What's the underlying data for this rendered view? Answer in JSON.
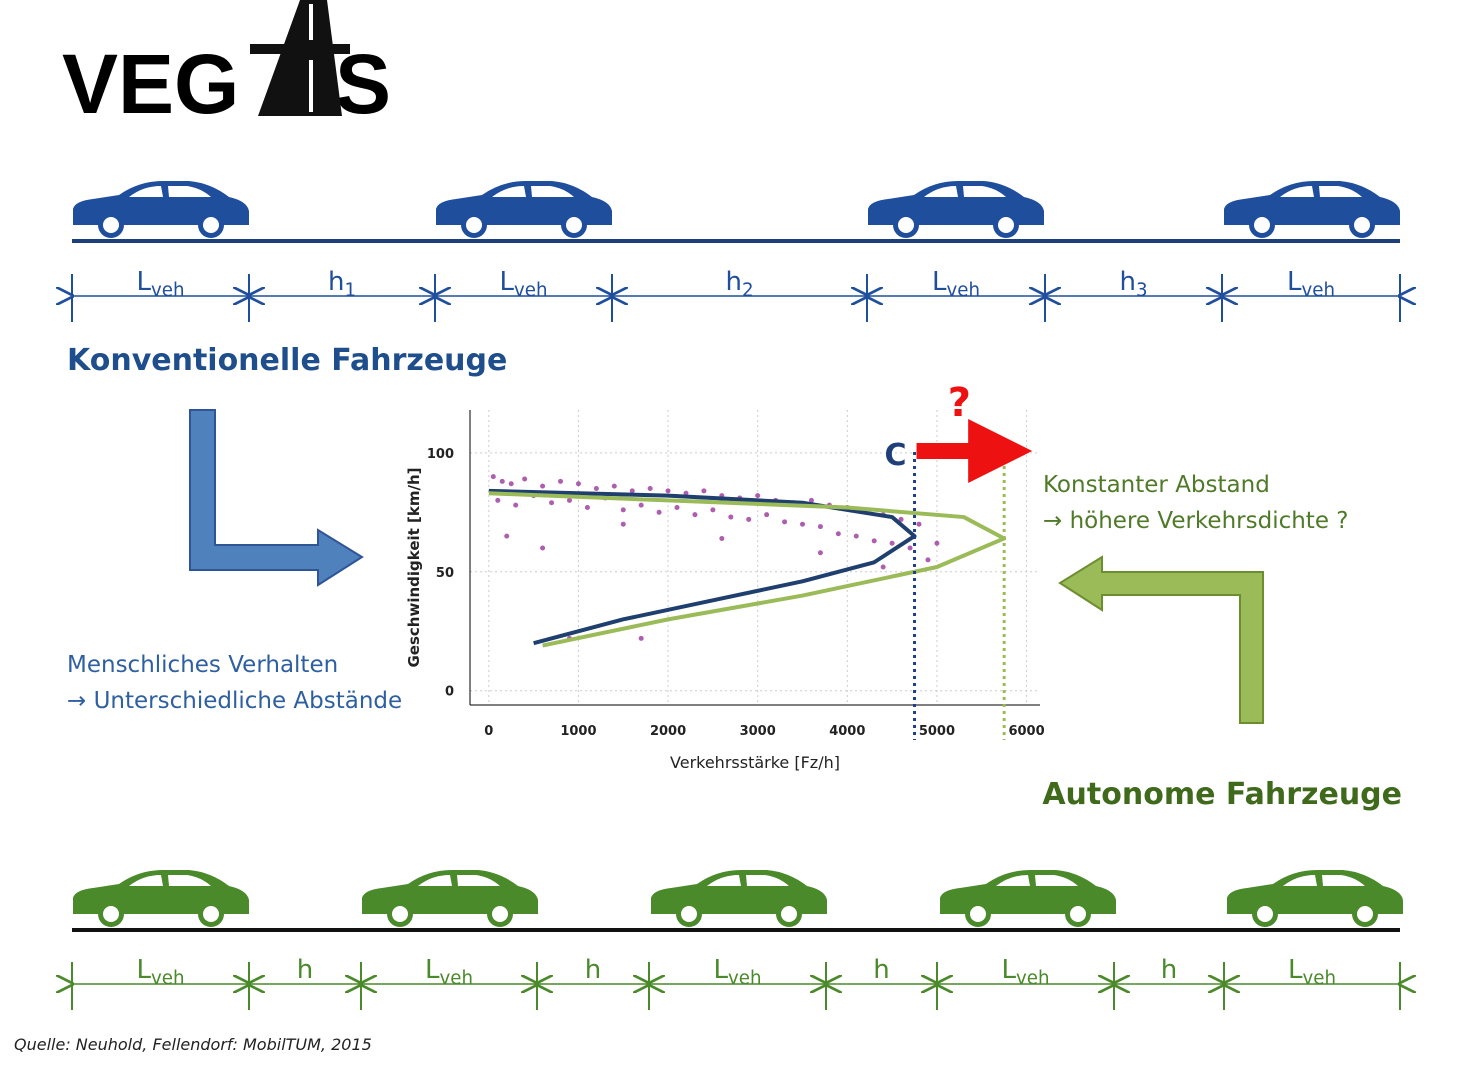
{
  "logo": {
    "left": "VEG",
    "right": "S"
  },
  "top_row": {
    "labels": [
      {
        "main": "L",
        "sub": "veh"
      },
      {
        "main": "h",
        "sub": "1"
      },
      {
        "main": "L",
        "sub": "veh"
      },
      {
        "main": "h",
        "sub": "2"
      },
      {
        "main": "L",
        "sub": "veh"
      },
      {
        "main": "h",
        "sub": "3"
      },
      {
        "main": "L",
        "sub": "veh"
      }
    ]
  },
  "heading_top": "Konventionelle Fahrzeuge",
  "heading_bottom": "Autonome Fahrzeuge",
  "note_left": [
    "Menschliches Verhalten",
    "→ Unterschiedliche Abstände"
  ],
  "note_right": [
    "Konstanter Abstand",
    "→ höhere Verkehrsdichte ?"
  ],
  "bottom_row": {
    "labels": [
      {
        "main": "L",
        "sub": "veh"
      },
      {
        "main": "h"
      },
      {
        "main": "L",
        "sub": "veh"
      },
      {
        "main": "h"
      },
      {
        "main": "L",
        "sub": "veh"
      },
      {
        "main": "h"
      },
      {
        "main": "L",
        "sub": "veh"
      },
      {
        "main": "h"
      },
      {
        "main": "L",
        "sub": "veh"
      }
    ]
  },
  "source": "Quelle: Neuhold, Fellendorf: MobilTUM, 2015",
  "chart_data": {
    "type": "scatter",
    "x_label": "Verkehrsstärke [Fz/h]",
    "y_label": "Geschwindigkeit [km/h]",
    "xlim": [
      -210,
      6150
    ],
    "ylim": [
      -6,
      118
    ],
    "xticks": [
      0,
      1000,
      2000,
      3000,
      4000,
      5000,
      6000
    ],
    "yticks": [
      0,
      50,
      100
    ],
    "grid": true,
    "series": [
      {
        "type": "scatter",
        "color": "#8b1a8b",
        "x": [
          50,
          150,
          250,
          400,
          600,
          800,
          1000,
          1200,
          1400,
          1600,
          1800,
          2000,
          2200,
          2400,
          2600,
          2800,
          3000,
          3200,
          3400,
          3600,
          3800,
          4000,
          4200,
          4400,
          4600,
          100,
          300,
          500,
          700,
          900,
          1100,
          1300,
          1500,
          1700,
          1900,
          2100,
          2300,
          2500,
          2700,
          2900,
          3100,
          3300,
          3500,
          3700,
          3900,
          4100,
          4300,
          4500,
          4700,
          200,
          600,
          1500,
          2600,
          3700,
          4800,
          5000,
          900,
          1700,
          4400,
          4900
        ],
        "values": [
          90,
          88,
          87,
          89,
          86,
          88,
          87,
          85,
          86,
          84,
          85,
          84,
          83,
          84,
          82,
          81,
          82,
          80,
          79,
          80,
          78,
          77,
          76,
          74,
          72,
          80,
          78,
          82,
          79,
          80,
          77,
          81,
          76,
          78,
          75,
          77,
          74,
          76,
          73,
          72,
          74,
          71,
          70,
          69,
          66,
          65,
          63,
          62,
          60,
          65,
          60,
          70,
          64,
          58,
          70,
          62,
          22,
          22,
          52,
          55
        ]
      },
      {
        "type": "line",
        "color": "#1f3f6e",
        "x": [
          500,
          1500,
          2500,
          3500,
          4300,
          4750,
          4500,
          3500,
          2000,
          0
        ],
        "values": [
          20,
          30,
          38,
          46,
          54,
          65,
          73,
          79,
          82,
          84
        ]
      },
      {
        "type": "line",
        "color": "#9bbb59",
        "x": [
          600,
          2000,
          3500,
          5000,
          5750,
          5300,
          4000,
          2000,
          0
        ],
        "values": [
          19,
          30,
          40,
          52,
          64,
          73,
          77,
          80,
          83
        ]
      }
    ],
    "vlines": [
      {
        "value": 4750,
        "color": "#1f3f8c"
      },
      {
        "value": 5750,
        "color": "#9bbb59"
      }
    ],
    "annotations": [
      "C",
      "?"
    ]
  }
}
